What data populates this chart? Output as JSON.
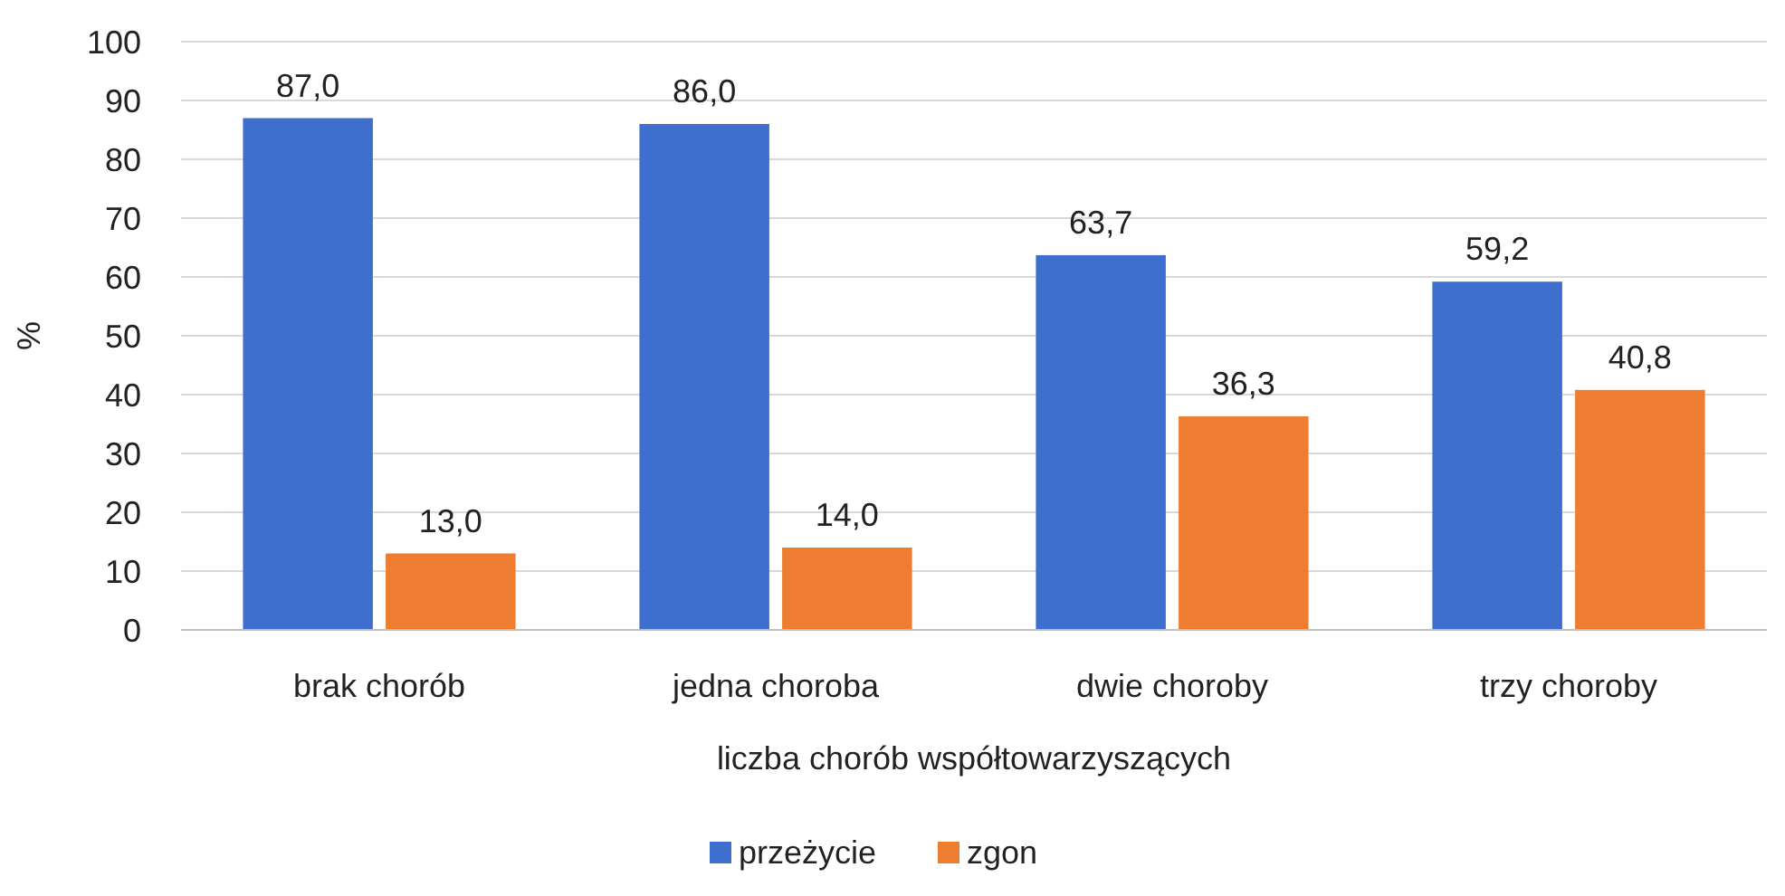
{
  "chart_data": {
    "type": "bar",
    "xlabel": "liczba chorób współtowarzyszących",
    "ylabel": "%",
    "categories": [
      "brak chorób",
      "jedna choroba",
      "dwie choroby",
      "trzy choroby"
    ],
    "series": [
      {
        "name": "przeżycie",
        "color": "#3f6fce",
        "values": [
          87.0,
          86.0,
          63.7,
          59.2
        ],
        "value_labels": [
          "87,0",
          "86,0",
          "63,7",
          "59,2"
        ]
      },
      {
        "name": "zgon",
        "color": "#ee7d31",
        "values": [
          13.0,
          14.0,
          36.3,
          40.8
        ],
        "value_labels": [
          "13,0",
          "14,0",
          "36,3",
          "40,8"
        ]
      }
    ],
    "ylim": [
      0,
      100
    ],
    "yticks": [
      0,
      10,
      20,
      30,
      40,
      50,
      60,
      70,
      80,
      90,
      100
    ],
    "grid": "y",
    "legend": "bottom"
  }
}
